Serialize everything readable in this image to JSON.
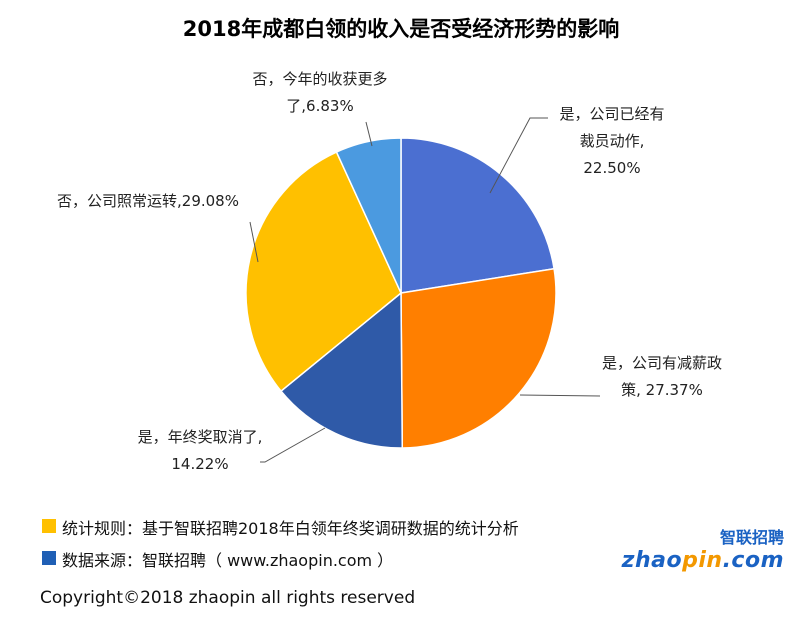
{
  "chart_data": {
    "type": "pie",
    "title": "2018年成都白领的收入是否受经济形势的影响",
    "slices": [
      {
        "label": [
          "是，公司已经有",
          "裁员动作,",
          "22.50%"
        ],
        "value": 22.5,
        "color": "#4b6fd1"
      },
      {
        "label": [
          "是，公司有减薪政",
          "策, 27.37%"
        ],
        "value": 27.37,
        "color": "#ff7f00"
      },
      {
        "label": [
          "是，年终奖取消了,",
          "14.22%"
        ],
        "value": 14.22,
        "color": "#2f5aa8"
      },
      {
        "label": [
          "否，公司照常运转,29.08%"
        ],
        "value": 29.08,
        "color": "#ffc000"
      },
      {
        "label": [
          "否，今年的收获更多",
          "了,6.83%"
        ],
        "value": 6.83,
        "color": "#4b9ae0"
      }
    ]
  },
  "notes": {
    "rule": "统计规则：基于智联招聘2018年白领年终奖调研数据的统计分析",
    "source": "数据来源：智联招聘（ www.zhaopin.com ）",
    "rule_color": "#ffc000",
    "source_color": "#1f5fb5"
  },
  "copyright": "Copyright©2018 zhaopin all rights reserved",
  "logo": {
    "cn": "智联招聘",
    "en_a": "zhao",
    "en_b": "pin",
    "en_c": ".com"
  }
}
